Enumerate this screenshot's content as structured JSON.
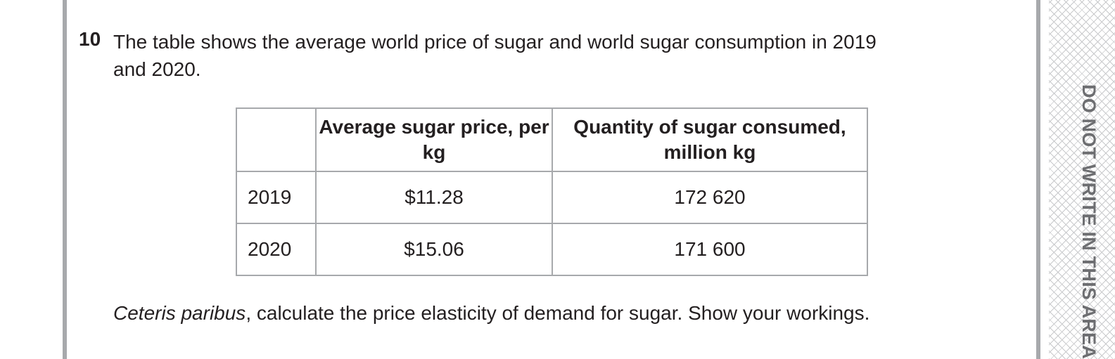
{
  "question": {
    "number": "10",
    "intro": "The table shows the average world price of sugar and world sugar consumption in 2019 and 2020.",
    "instruction_italic": "Ceteris paribus",
    "instruction_rest": ", calculate the price elasticity of demand for sugar. Show your workings."
  },
  "table": {
    "headers": [
      "",
      "Average sugar price, per kg",
      "Quantity of sugar consumed, million kg"
    ],
    "rows": [
      {
        "year": "2019",
        "price": "$11.28",
        "quantity": "172 620"
      },
      {
        "year": "2020",
        "price": "$15.06",
        "quantity": "171 600"
      }
    ]
  },
  "margin": {
    "warning": "DO NOT WRITE IN THIS AREA"
  }
}
